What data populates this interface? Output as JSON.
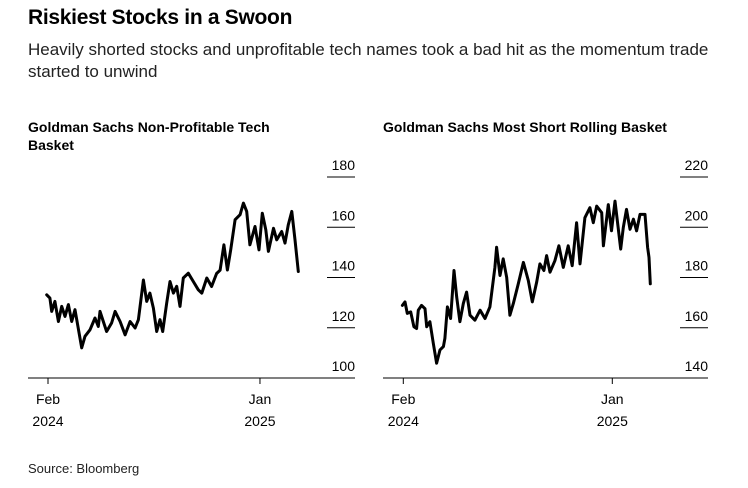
{
  "header": {
    "title": "Riskiest Stocks in a Swoon",
    "subtitle": "Heavily shorted stocks and unprofitable tech names took a bad hit as the momentum trade started to unwind"
  },
  "source": "Source: Bloomberg",
  "chart_data": [
    {
      "type": "line",
      "title": "Goldman Sachs Non-Profitable Tech Basket",
      "xlabel": "",
      "ylabel": "",
      "x_unit": "months since Feb 2024",
      "x_ticks": [
        {
          "x": 0,
          "label": [
            "Feb",
            "2024"
          ]
        },
        {
          "x": 11,
          "label": [
            "Jan",
            "2025"
          ]
        }
      ],
      "y_ticks": [
        100,
        120,
        140,
        160,
        180
      ],
      "ylim": [
        100,
        180
      ],
      "color": "#000000",
      "x": [
        -0.07,
        0.1,
        0.19,
        0.36,
        0.54,
        0.71,
        0.88,
        1.06,
        1.23,
        1.4,
        1.75,
        1.92,
        2.18,
        2.44,
        2.61,
        2.7,
        3.04,
        3.3,
        3.48,
        3.74,
        4.0,
        4.26,
        4.52,
        4.69,
        4.95,
        5.12,
        5.29,
        5.47,
        5.64,
        5.81,
        5.95,
        6.16,
        6.33,
        6.51,
        6.68,
        6.85,
        7.02,
        7.28,
        7.54,
        7.8,
        7.98,
        8.24,
        8.49,
        8.75,
        8.93,
        9.13,
        9.31,
        9.48,
        9.71,
        9.97,
        10.14,
        10.31,
        10.48,
        10.74,
        10.95,
        11.12,
        11.3,
        11.44,
        11.7,
        11.87,
        12.13,
        12.3,
        12.47,
        12.65,
        12.82,
        12.99
      ],
      "values": [
        133.1,
        131.8,
        126.5,
        130.5,
        122.5,
        128.5,
        124.5,
        129.2,
        122.5,
        127.2,
        112,
        116.6,
        119.2,
        123.9,
        120.5,
        126.5,
        118.5,
        121.9,
        126.5,
        122.5,
        117.2,
        122.5,
        119.9,
        123.2,
        139,
        130.5,
        133.8,
        127.8,
        118.5,
        123.2,
        118.5,
        129.8,
        138.4,
        133.8,
        136.5,
        128.5,
        139.8,
        141.7,
        138.4,
        135.1,
        133.8,
        139.8,
        136.4,
        141.6,
        142.9,
        153,
        143,
        151,
        163,
        165,
        169.6,
        166.3,
        153,
        160.3,
        151,
        165.6,
        159,
        150.4,
        159.6,
        155,
        158.3,
        153.7,
        161,
        166.3,
        155,
        142.4
      ]
    },
    {
      "type": "line",
      "title": "Goldman Sachs Most Short Rolling Basket",
      "xlabel": "",
      "ylabel": "",
      "x_unit": "months since Feb 2024",
      "x_ticks": [
        {
          "x": 0,
          "label": [
            "Feb",
            "2024"
          ]
        },
        {
          "x": 11,
          "label": [
            "Jan",
            "2025"
          ]
        }
      ],
      "y_ticks": [
        140,
        160,
        180,
        200,
        220
      ],
      "ylim": [
        140,
        220
      ],
      "color": "#000000",
      "x": [
        -0.05,
        0.09,
        0.21,
        0.39,
        0.56,
        0.7,
        0.79,
        0.96,
        1.14,
        1.23,
        1.4,
        1.58,
        1.75,
        1.93,
        2.11,
        2.19,
        2.32,
        2.49,
        2.67,
        2.81,
        2.98,
        3.16,
        3.33,
        3.51,
        3.77,
        4.04,
        4.3,
        4.56,
        4.82,
        4.91,
        5.09,
        5.26,
        5.44,
        5.61,
        5.79,
        6.05,
        6.32,
        6.58,
        6.79,
        7.02,
        7.19,
        7.4,
        7.54,
        7.72,
        7.98,
        8.19,
        8.42,
        8.68,
        8.89,
        9.12,
        9.3,
        9.56,
        9.82,
        10.0,
        10.18,
        10.44,
        10.53,
        10.79,
        10.96,
        11.14,
        11.44,
        11.58,
        11.75,
        11.93,
        12.11,
        12.28,
        12.46,
        12.72,
        12.86,
        12.93,
        13.0
      ],
      "values": [
        168.9,
        170.3,
        165.7,
        166.3,
        160.4,
        159.7,
        167,
        168.9,
        167.6,
        160.4,
        162.4,
        153.8,
        145.9,
        151.2,
        152.5,
        155.8,
        168.3,
        163.7,
        182.8,
        172.2,
        162.4,
        169.6,
        174.2,
        165,
        163,
        167,
        163.7,
        168.3,
        184,
        192,
        180.8,
        187.4,
        180,
        165,
        169.6,
        177.5,
        186,
        178.8,
        170.3,
        178.2,
        185.4,
        182.8,
        188.7,
        182.1,
        186.7,
        192.6,
        184,
        192.6,
        184.7,
        201.8,
        185.4,
        203.8,
        207.8,
        201.8,
        208.4,
        205.8,
        192.6,
        209,
        198.6,
        210.4,
        191.3,
        199.9,
        207.1,
        199.2,
        203.2,
        198.6,
        205.1,
        205.1,
        192,
        188,
        177.5
      ]
    }
  ]
}
